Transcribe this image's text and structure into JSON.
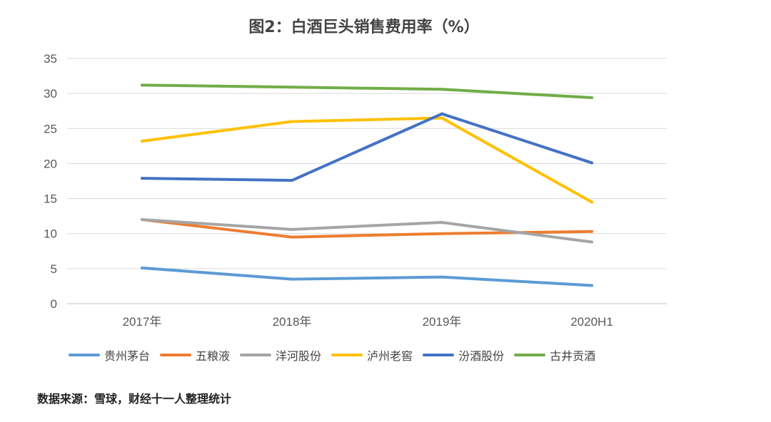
{
  "chart_data": {
    "type": "line",
    "title": "图2：白酒巨头销售费用率（%）",
    "categories": [
      "2017年",
      "2018年",
      "2019年",
      "2020H1"
    ],
    "ylim": [
      0,
      35
    ],
    "yticks": [
      0,
      5,
      10,
      15,
      20,
      25,
      30,
      35
    ],
    "grid": true,
    "legend_position": "bottom",
    "series": [
      {
        "name": "贵州茅台",
        "color": "#5b9bd5",
        "values": [
          5.1,
          3.5,
          3.8,
          2.6
        ]
      },
      {
        "name": "五粮液",
        "color": "#ed7d31",
        "values": [
          12.0,
          9.5,
          10.0,
          10.3
        ]
      },
      {
        "name": "洋河股份",
        "color": "#a5a5a5",
        "values": [
          12.0,
          10.6,
          11.6,
          8.8
        ]
      },
      {
        "name": "泸州老窖",
        "color": "#ffc000",
        "values": [
          23.2,
          26.0,
          26.5,
          14.5
        ]
      },
      {
        "name": "汾酒股份",
        "color": "#4472c4",
        "values": [
          17.9,
          17.6,
          27.1,
          20.1
        ]
      },
      {
        "name": "古井贡酒",
        "color": "#70ad47",
        "values": [
          31.2,
          30.9,
          30.6,
          29.4
        ]
      }
    ]
  },
  "source_note": "数据来源：雪球，财经十一人整理统计"
}
